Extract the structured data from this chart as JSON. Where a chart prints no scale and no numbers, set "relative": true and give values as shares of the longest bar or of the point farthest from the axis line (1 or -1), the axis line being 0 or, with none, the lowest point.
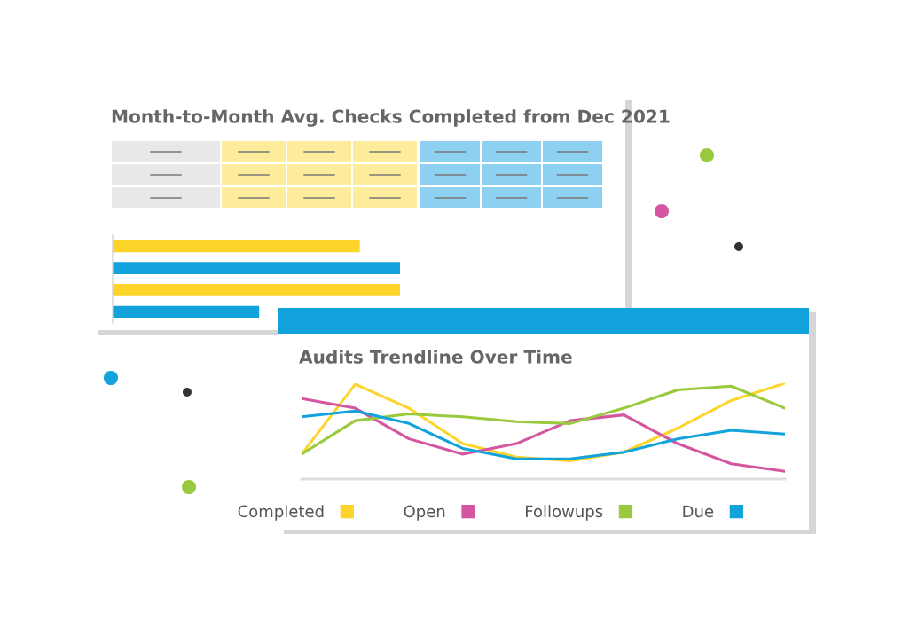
{
  "chart_data": [
    {
      "type": "bar",
      "title": "Month-to-Month Avg. Checks Completed from Dec 2021",
      "orientation": "horizontal",
      "relative": true,
      "categories": [
        null,
        null,
        null,
        null
      ],
      "values": [
        0.86,
        1,
        1,
        0.51
      ],
      "colors": [
        "#fdd42a",
        "#12a3dd",
        "#fdd42a",
        "#12a3dd"
      ]
    },
    {
      "type": "line",
      "title": "Audits Trendline Over Time",
      "relative": true,
      "legend": "bottom",
      "marker": "none",
      "line_style": "solid",
      "categories": [
        null,
        null,
        null,
        null,
        null,
        null,
        null,
        null,
        null,
        null
      ],
      "series": [
        {
          "name": "Completed",
          "color": "#fdd42a",
          "values": [
            0.26,
            0.99,
            0.74,
            0.37,
            0.23,
            0.19,
            0.28,
            0.53,
            0.82,
            1
          ]
        },
        {
          "name": "Open",
          "color": "#d455a0",
          "values": [
            0.84,
            0.74,
            0.42,
            0.26,
            0.37,
            0.61,
            0.67,
            0.37,
            0.16,
            0.08
          ]
        },
        {
          "name": "Followups",
          "color": "#99c93c",
          "values": [
            0.26,
            0.61,
            0.68,
            0.65,
            0.6,
            0.58,
            0.74,
            0.93,
            0.97,
            0.74
          ]
        },
        {
          "name": "Due",
          "color": "#12a3dd",
          "values": [
            0.65,
            0.71,
            0.58,
            0.32,
            0.21,
            0.21,
            0.28,
            0.42,
            0.51,
            0.47
          ]
        }
      ]
    }
  ]
}
